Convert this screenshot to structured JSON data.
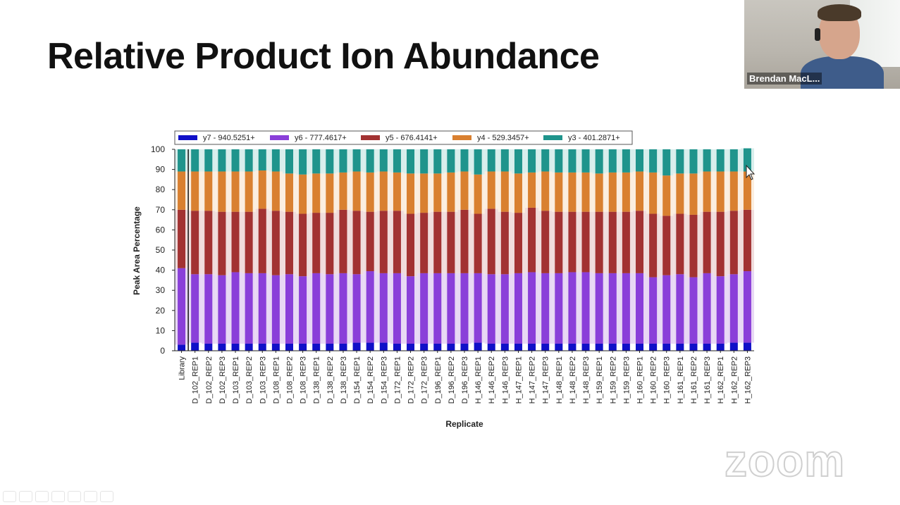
{
  "slide": {
    "title": "Relative Product Ion Abundance"
  },
  "video": {
    "name": "Brendan MacL..."
  },
  "watermark": {
    "text": "zoom"
  },
  "colors": {
    "y7": "#1010c8",
    "y6": "#8a3fd9",
    "y5": "#a23232",
    "y4": "#d98030",
    "y3": "#1f948c",
    "pale_y6": "#e8d8f4",
    "pale_y5": "#f0dcdc",
    "pale_y4": "#fbeee0",
    "pale_y3": "#d8eeec"
  },
  "chart_data": {
    "type": "bar",
    "stacked": true,
    "xlabel": "Replicate",
    "ylabel": "Peak Area Percentage",
    "ylim": [
      0,
      100
    ],
    "yticks": [
      0,
      10,
      20,
      30,
      40,
      50,
      60,
      70,
      80,
      90,
      100
    ],
    "legend_placement": "top",
    "grid": false,
    "categories": [
      "Library",
      "D_102_REP1",
      "D_102_REP2",
      "D_102_REP3",
      "D_103_REP1",
      "D_103_REP2",
      "D_103_REP3",
      "D_108_REP1",
      "D_108_REP2",
      "D_108_REP3",
      "D_138_REP1",
      "D_138_REP2",
      "D_138_REP3",
      "D_154_REP1",
      "D_154_REP2",
      "D_154_REP3",
      "D_172_REP1",
      "D_172_REP2",
      "D_172_REP3",
      "D_196_REP1",
      "D_196_REP2",
      "D_196_REP3",
      "H_146_REP1",
      "H_146_REP2",
      "H_146_REP3",
      "H_147_REP1",
      "H_147_REP2",
      "H_147_REP3",
      "H_148_REP1",
      "H_148_REP2",
      "H_148_REP3",
      "H_159_REP1",
      "H_159_REP2",
      "H_159_REP3",
      "H_160_REP1",
      "H_160_REP2",
      "H_160_REP3",
      "H_161_REP1",
      "H_161_REP2",
      "H_161_REP3",
      "H_162_REP1",
      "H_162_REP2",
      "H_162_REP3"
    ],
    "series": [
      {
        "name": "y7 - 940.5251+",
        "values": [
          3,
          4,
          3.5,
          3.5,
          3.5,
          3.5,
          3.5,
          3.5,
          3.5,
          3.5,
          3.5,
          3.5,
          3.5,
          4,
          4,
          4,
          3.5,
          3.5,
          3.5,
          3.5,
          3.5,
          3.5,
          4,
          3.5,
          3.5,
          3.5,
          3.5,
          3.5,
          3.5,
          3.5,
          3.5,
          3.5,
          3.5,
          3.5,
          3.5,
          3.5,
          3.5,
          3.5,
          3.5,
          3.5,
          3.5,
          4,
          4
        ]
      },
      {
        "name": "y6 - 777.4617+",
        "values": [
          38,
          34,
          34.5,
          34,
          35.5,
          35,
          35,
          34,
          34.5,
          33.5,
          35,
          34.5,
          35,
          34,
          35.5,
          34.5,
          35,
          33.5,
          35,
          35,
          35,
          35,
          34.5,
          34.5,
          34.5,
          35,
          35.5,
          35,
          35,
          35.5,
          35.5,
          35,
          35,
          35,
          35,
          33,
          34,
          34.5,
          33,
          35,
          33.5,
          34,
          35.5
        ]
      },
      {
        "name": "y5 - 676.4141+",
        "values": [
          29,
          31.5,
          31.5,
          31.5,
          30,
          30.5,
          32,
          32,
          31,
          31,
          30,
          30.5,
          31.5,
          31.5,
          29.5,
          31,
          31,
          31,
          30,
          30.5,
          30.5,
          31.5,
          29.5,
          32.5,
          31,
          30,
          32,
          31,
          30.5,
          30,
          30,
          30.5,
          30.5,
          30.5,
          31,
          31.5,
          29.5,
          30,
          31,
          30.5,
          32,
          31.5,
          30.5
        ]
      },
      {
        "name": "y4 - 529.3457+",
        "values": [
          19,
          19.5,
          19.5,
          20,
          20,
          20,
          19,
          19.5,
          19,
          19.5,
          19.5,
          19.5,
          18.5,
          19.5,
          19.5,
          19.5,
          19,
          20,
          19.5,
          19,
          19.5,
          19,
          19.5,
          18.5,
          20,
          19.5,
          17.5,
          19.5,
          19.5,
          19.5,
          19.5,
          19,
          19.5,
          19.5,
          19.5,
          20.5,
          20,
          20,
          20.5,
          20,
          20,
          19.5,
          19
        ]
      },
      {
        "name": "y3 - 401.2871+",
        "values": [
          11,
          11,
          11,
          11,
          11,
          11,
          10.5,
          11,
          12,
          12.5,
          12,
          12,
          11.5,
          11,
          11.5,
          11,
          11.5,
          12,
          12,
          12,
          11.5,
          11,
          12.5,
          11,
          11,
          12,
          11.5,
          11,
          11.5,
          11.5,
          11.5,
          12,
          11.5,
          11.5,
          11,
          11.5,
          13,
          12,
          12,
          11,
          11,
          11,
          11.5
        ]
      }
    ]
  }
}
